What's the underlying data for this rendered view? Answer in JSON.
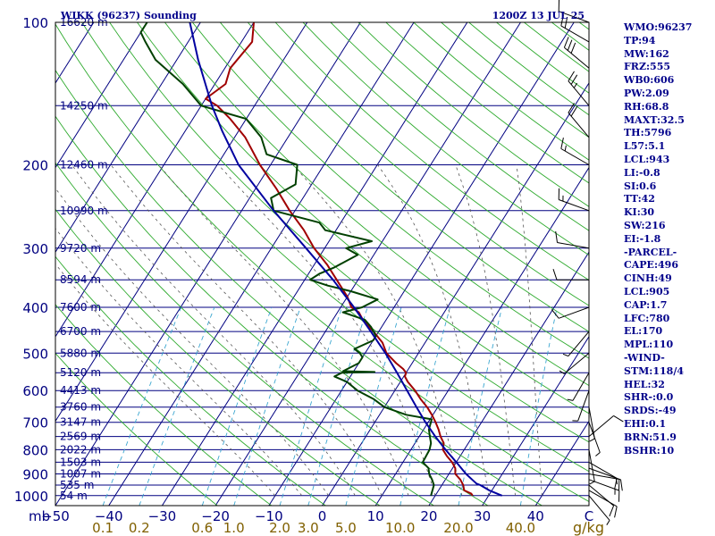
{
  "header": {
    "station": "WIKK (96237) Sounding",
    "time": "1200Z 13 JUL 25"
  },
  "pressure_unit": "mb",
  "mixing_ratio_unit": "g/kg",
  "indices": [
    "WMO:96237",
    "TP:94",
    "MW:162",
    "FRZ:555",
    "WB0:606",
    "PW:2.09",
    "RH:68.8",
    "MAXT:32.5",
    "TH:5796",
    "L57:5.1",
    "LCL:943",
    "LI:-0.8",
    "SI:0.6",
    "TT:42",
    "KI:30",
    "SW:216",
    "EI:-1.8",
    "-PARCEL-",
    "CAPE:496",
    "CINH:49",
    "LCL:905",
    "CAP:1.7",
    "LFC:780",
    "EL:170",
    "MPL:110",
    "-WIND-",
    "STM:118/4",
    "HEL:32",
    "SHR-:0.0",
    "SRDS:-49",
    "EHI:0.1",
    "BRN:51.9",
    "BSHR:10"
  ],
  "chart_data": {
    "type": "line",
    "skew_degC_per_log10p": 56,
    "xlim": [
      -50,
      50
    ],
    "plim": [
      100,
      1050
    ],
    "pressure_ticks": [
      100,
      200,
      300,
      400,
      500,
      600,
      700,
      800,
      900,
      1000
    ],
    "temperature_ticks": [
      -50,
      -40,
      -30,
      -20,
      -10,
      0,
      10,
      20,
      30,
      40
    ],
    "temperature_end_label": "C",
    "height_levels": [
      {
        "p": 100,
        "label": "16620 m"
      },
      {
        "p": 150,
        "label": "14250 m"
      },
      {
        "p": 200,
        "label": "12460 m"
      },
      {
        "p": 250,
        "label": "10990 m"
      },
      {
        "p": 300,
        "label": "9720 m"
      },
      {
        "p": 350,
        "label": "8594 m"
      },
      {
        "p": 400,
        "label": "7600 m"
      },
      {
        "p": 450,
        "label": "6700 m"
      },
      {
        "p": 500,
        "label": "5880 m"
      },
      {
        "p": 550,
        "label": "5120 m"
      },
      {
        "p": 600,
        "label": "4413 m"
      },
      {
        "p": 650,
        "label": "3760 m"
      },
      {
        "p": 700,
        "label": "3147 m"
      },
      {
        "p": 750,
        "label": "2569 m"
      },
      {
        "p": 800,
        "label": "2022 m"
      },
      {
        "p": 850,
        "label": "1503 m"
      },
      {
        "p": 900,
        "label": "1007 m"
      },
      {
        "p": 950,
        "label": "535 m"
      },
      {
        "p": 1000,
        "label": "54 m"
      }
    ],
    "mixing_ratios": [
      {
        "w": 0.1,
        "label": "0.1"
      },
      {
        "w": 0.2,
        "label": "0.2"
      },
      {
        "w": 0.6,
        "label": "0.6"
      },
      {
        "w": 1.0,
        "label": "1.0"
      },
      {
        "w": 2.0,
        "label": "2.0"
      },
      {
        "w": 3.0,
        "label": "3.0"
      },
      {
        "w": 5.0,
        "label": "5.0"
      },
      {
        "w": 10.0,
        "label": "10.0"
      },
      {
        "w": 20.0,
        "label": "20.0"
      },
      {
        "w": 40.0,
        "label": "40.0"
      }
    ],
    "dry_adiabats_K": [
      250,
      260,
      270,
      280,
      290,
      300,
      310,
      320,
      330,
      340,
      350,
      360,
      370,
      380,
      390,
      400,
      410,
      420,
      430,
      440,
      450,
      460,
      470,
      480,
      490,
      500,
      510,
      520
    ],
    "moist_adiabats_C": [
      -10,
      -5,
      0,
      5,
      10,
      15,
      20,
      25,
      30,
      35,
      40
    ],
    "series": [
      {
        "key": "temperature",
        "color": "#a00000",
        "points": [
          [
            1000,
            27
          ],
          [
            990,
            26.5
          ],
          [
            975,
            24.8
          ],
          [
            950,
            24
          ],
          [
            925,
            22.8
          ],
          [
            900,
            21.2
          ],
          [
            875,
            20.5
          ],
          [
            850,
            19.2
          ],
          [
            825,
            17.5
          ],
          [
            800,
            16
          ],
          [
            775,
            15.4
          ],
          [
            750,
            14
          ],
          [
            725,
            12.8
          ],
          [
            700,
            11.4
          ],
          [
            675,
            9.8
          ],
          [
            650,
            8
          ],
          [
            625,
            5.8
          ],
          [
            600,
            3.8
          ],
          [
            575,
            1.4
          ],
          [
            560,
            0.2
          ],
          [
            550,
            0
          ],
          [
            540,
            -1
          ],
          [
            525,
            -3
          ],
          [
            500,
            -6
          ],
          [
            475,
            -8
          ],
          [
            450,
            -11
          ],
          [
            425,
            -14.4
          ],
          [
            410,
            -16
          ],
          [
            400,
            -18
          ],
          [
            380,
            -20
          ],
          [
            350,
            -24
          ],
          [
            325,
            -27.6
          ],
          [
            300,
            -32
          ],
          [
            275,
            -36
          ],
          [
            250,
            -41
          ],
          [
            225,
            -46
          ],
          [
            200,
            -52
          ],
          [
            175,
            -58
          ],
          [
            160,
            -63
          ],
          [
            150,
            -67
          ],
          [
            145,
            -70
          ],
          [
            135,
            -68
          ],
          [
            125,
            -69
          ],
          [
            110,
            -68
          ],
          [
            100,
            -70
          ]
        ]
      },
      {
        "key": "dewpoint",
        "color": "#004000",
        "points": [
          [
            1000,
            19.2
          ],
          [
            950,
            18.5
          ],
          [
            925,
            17.5
          ],
          [
            900,
            16.3
          ],
          [
            875,
            15.5
          ],
          [
            850,
            13.7
          ],
          [
            800,
            13.5
          ],
          [
            775,
            13
          ],
          [
            750,
            12
          ],
          [
            725,
            11
          ],
          [
            700,
            10.5
          ],
          [
            690,
            10.3
          ],
          [
            675,
            5
          ],
          [
            650,
            0
          ],
          [
            625,
            -3
          ],
          [
            600,
            -7
          ],
          [
            575,
            -10
          ],
          [
            560,
            -13
          ],
          [
            550,
            -12
          ],
          [
            548,
            -6
          ],
          [
            546,
            -12
          ],
          [
            525,
            -10
          ],
          [
            510,
            -10
          ],
          [
            500,
            -11
          ],
          [
            490,
            -12.5
          ],
          [
            470,
            -10
          ],
          [
            460,
            -10
          ],
          [
            440,
            -12
          ],
          [
            425,
            -14
          ],
          [
            410,
            -19
          ],
          [
            400,
            -16
          ],
          [
            385,
            -14
          ],
          [
            370,
            -20
          ],
          [
            360,
            -25
          ],
          [
            350,
            -29
          ],
          [
            340,
            -28
          ],
          [
            330,
            -26
          ],
          [
            310,
            -23
          ],
          [
            300,
            -26
          ],
          [
            290,
            -22
          ],
          [
            275,
            -32
          ],
          [
            265,
            -34
          ],
          [
            250,
            -44
          ],
          [
            235,
            -46
          ],
          [
            220,
            -43
          ],
          [
            200,
            -45
          ],
          [
            190,
            -52
          ],
          [
            175,
            -55
          ],
          [
            160,
            -60
          ],
          [
            150,
            -70
          ],
          [
            135,
            -76
          ],
          [
            120,
            -84
          ],
          [
            110,
            -88
          ],
          [
            105,
            -90
          ],
          [
            100,
            -90
          ]
        ]
      },
      {
        "key": "parcel",
        "color": "#0000a0",
        "points": [
          [
            1000,
            32.5
          ],
          [
            975,
            29.5
          ],
          [
            950,
            27.2
          ],
          [
            943,
            26.3
          ],
          [
            925,
            25
          ],
          [
            900,
            23.2
          ],
          [
            850,
            20
          ],
          [
            800,
            16.5
          ],
          [
            750,
            13
          ],
          [
            700,
            9.5
          ],
          [
            650,
            6
          ],
          [
            600,
            2.3
          ],
          [
            550,
            -1.7
          ],
          [
            500,
            -6.2
          ],
          [
            450,
            -11.5
          ],
          [
            400,
            -17.5
          ],
          [
            350,
            -24.7
          ],
          [
            300,
            -33.5
          ],
          [
            250,
            -44
          ],
          [
            200,
            -56
          ],
          [
            170,
            -63
          ],
          [
            150,
            -68
          ],
          [
            120,
            -76
          ],
          [
            100,
            -82
          ]
        ]
      }
    ],
    "wind_barbs": [
      {
        "p": 1000,
        "dir": 140,
        "kt": 5
      },
      {
        "p": 975,
        "dir": 120,
        "kt": 10
      },
      {
        "p": 950,
        "dir": 130,
        "kt": 10
      },
      {
        "p": 925,
        "dir": 110,
        "kt": 15
      },
      {
        "p": 900,
        "dir": 100,
        "kt": 15
      },
      {
        "p": 875,
        "dir": 110,
        "kt": 10
      },
      {
        "p": 850,
        "dir": 120,
        "kt": 10
      },
      {
        "p": 800,
        "dir": 170,
        "kt": 5
      },
      {
        "p": 750,
        "dir": 50,
        "kt": 10
      },
      {
        "p": 700,
        "dir": 160,
        "kt": 5
      },
      {
        "p": 650,
        "dir": 170,
        "kt": 5
      },
      {
        "p": 600,
        "dir": 200,
        "kt": 5
      },
      {
        "p": 550,
        "dir": 210,
        "kt": 5
      },
      {
        "p": 500,
        "dir": 230,
        "kt": 5
      },
      {
        "p": 450,
        "dir": 220,
        "kt": 5
      },
      {
        "p": 400,
        "dir": 250,
        "kt": 10
      },
      {
        "p": 350,
        "dir": 270,
        "kt": 10
      },
      {
        "p": 300,
        "dir": 280,
        "kt": 10
      },
      {
        "p": 250,
        "dir": 290,
        "kt": 15
      },
      {
        "p": 200,
        "dir": 300,
        "kt": 15
      },
      {
        "p": 175,
        "dir": 320,
        "kt": 20
      },
      {
        "p": 150,
        "dir": 320,
        "kt": 25
      },
      {
        "p": 125,
        "dir": 310,
        "kt": 30
      },
      {
        "p": 110,
        "dir": 300,
        "kt": 20
      },
      {
        "p": 100,
        "dir": 290,
        "kt": 10
      }
    ]
  }
}
